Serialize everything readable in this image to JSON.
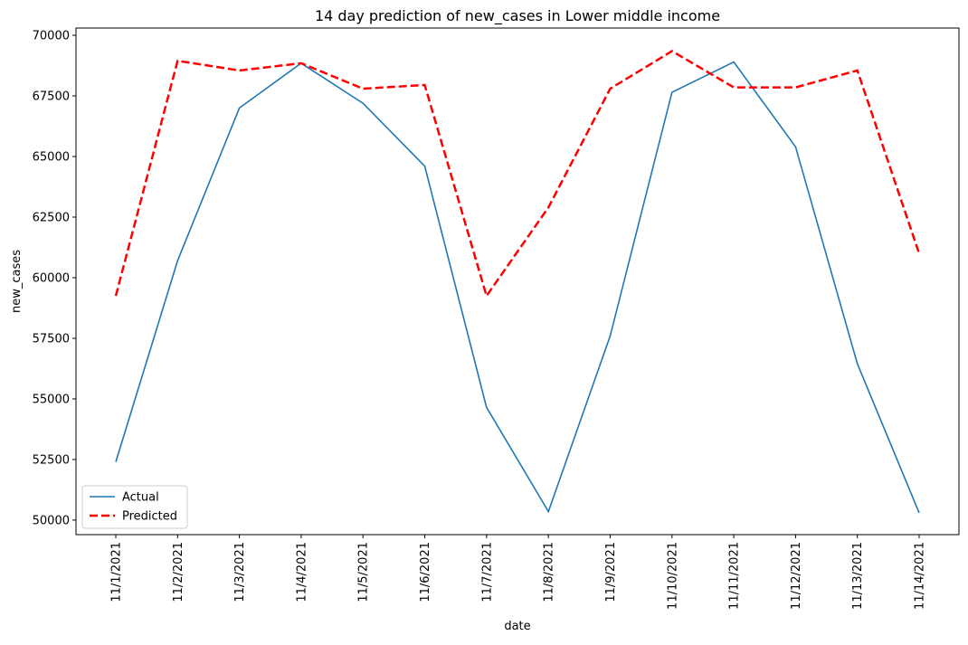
{
  "chart_data": {
    "type": "line",
    "title": "14 day prediction of new_cases in Lower middle income",
    "xlabel": "date",
    "ylabel": "new_cases",
    "categories": [
      "11/1/2021",
      "11/2/2021",
      "11/3/2021",
      "11/4/2021",
      "11/5/2021",
      "11/6/2021",
      "11/7/2021",
      "11/8/2021",
      "11/9/2021",
      "11/10/2021",
      "11/11/2021",
      "11/12/2021",
      "11/13/2021",
      "11/14/2021"
    ],
    "y_ticks": [
      50000,
      52500,
      55000,
      57500,
      60000,
      62500,
      65000,
      67500,
      70000
    ],
    "ylim": [
      49400,
      70300
    ],
    "grid": false,
    "legend_position": "lower-left",
    "series": [
      {
        "name": "Actual",
        "color": "#1f77b4",
        "style": "solid",
        "values": [
          52400,
          60700,
          67000,
          68850,
          67200,
          64600,
          54650,
          50350,
          57600,
          67650,
          68900,
          65400,
          56450,
          50300
        ]
      },
      {
        "name": "Predicted",
        "color": "#ff0000",
        "style": "dashed",
        "values": [
          59250,
          68950,
          68550,
          68850,
          67800,
          67950,
          59250,
          62900,
          67800,
          69350,
          67850,
          67850,
          68550,
          61000
        ]
      }
    ]
  }
}
